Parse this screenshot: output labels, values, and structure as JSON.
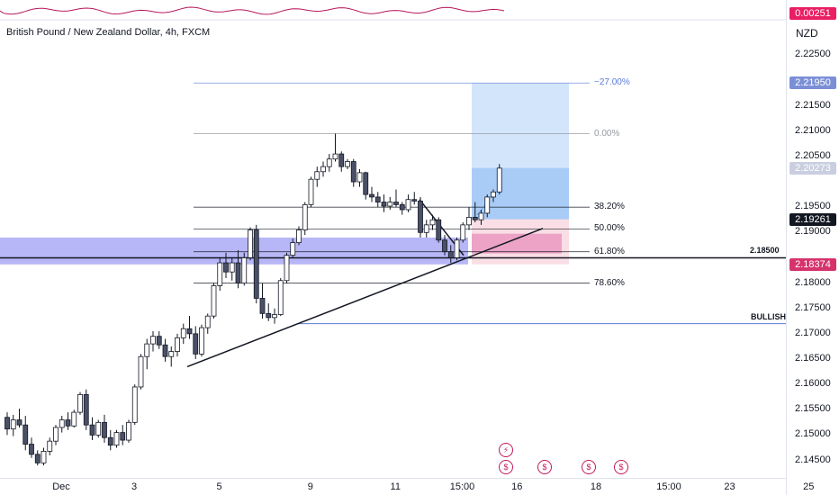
{
  "symbol": {
    "title": "British Pound / New Zealand Dollar, 4h, FXCM"
  },
  "currency_label": "NZD",
  "indicator": {
    "value": "0.00251"
  },
  "price_scale": {
    "ticks": [
      {
        "label": "2.22500",
        "value": 2.225
      },
      {
        "label": "2.21500",
        "value": 2.215
      },
      {
        "label": "2.21000",
        "value": 2.21
      },
      {
        "label": "2.20500",
        "value": 2.205
      },
      {
        "label": "2.19500",
        "value": 2.195
      },
      {
        "label": "2.19000",
        "value": 2.19
      },
      {
        "label": "2.18000",
        "value": 2.18
      },
      {
        "label": "2.17500",
        "value": 2.175
      },
      {
        "label": "2.17000",
        "value": 2.17
      },
      {
        "label": "2.16500",
        "value": 2.165
      },
      {
        "label": "2.16000",
        "value": 2.16
      },
      {
        "label": "2.15500",
        "value": 2.155
      },
      {
        "label": "2.15000",
        "value": 2.15
      },
      {
        "label": "2.14500",
        "value": 2.145
      }
    ],
    "badges": [
      {
        "label": "2.21950",
        "value": 2.2195,
        "color": "#7b8fd6"
      },
      {
        "label": "2.20273",
        "value": 2.20273,
        "color": "#c9cfe0"
      },
      {
        "label": "2.19261",
        "value": 2.19261,
        "color": "#131722"
      },
      {
        "label": "2.18374",
        "value": 2.18374,
        "color": "#d6336c"
      }
    ]
  },
  "time_axis": {
    "ticks": [
      {
        "label": "Dec",
        "bar": 0
      },
      {
        "label": "3",
        "bar": 12
      },
      {
        "label": "5",
        "bar": 26
      },
      {
        "label": "9",
        "bar": 41
      },
      {
        "label": "11",
        "bar": 55
      },
      {
        "label": "15:00",
        "bar": 66
      },
      {
        "label": "16",
        "bar": 75
      },
      {
        "label": "18",
        "bar": 88
      },
      {
        "label": "15:00",
        "bar": 100
      },
      {
        "label": "23",
        "bar": 110
      },
      {
        "label": "25",
        "bar": 123
      }
    ]
  },
  "fibonacci": {
    "levels": [
      {
        "label": "−27.00%",
        "value": 2.2195,
        "color": "#5b7bd6"
      },
      {
        "label": "0.00%",
        "value": 2.2095,
        "color": "#9598a1"
      },
      {
        "label": "38.20%",
        "value": 2.195,
        "color": "#131722"
      },
      {
        "label": "50.00%",
        "value": 2.1907,
        "color": "#131722"
      },
      {
        "label": "61.80%",
        "value": 2.1862,
        "color": "#131722"
      },
      {
        "label": "78.60%",
        "value": 2.18,
        "color": "#131722"
      }
    ]
  },
  "horizontal_lines": [
    {
      "label": "2.18500",
      "value": 2.185
    },
    {
      "label": "BULLISH",
      "value": 2.172
    }
  ],
  "chart_data": {
    "type": "candlestick",
    "title": "British Pound / New Zealand Dollar, 4h, FXCM",
    "ylim": [
      2.1435,
      2.2295
    ],
    "candles": [
      [
        2.1535,
        2.1545,
        2.15,
        2.1512
      ],
      [
        2.1512,
        2.154,
        2.1498,
        2.153
      ],
      [
        2.153,
        2.1552,
        2.1515,
        2.152
      ],
      [
        2.152,
        2.1538,
        2.147,
        2.1482
      ],
      [
        2.1482,
        2.1495,
        2.1455,
        2.1462
      ],
      [
        2.1462,
        2.147,
        2.144,
        2.1445
      ],
      [
        2.1445,
        2.1475,
        2.144,
        2.1468
      ],
      [
        2.1468,
        2.1495,
        2.146,
        2.1488
      ],
      [
        2.1488,
        2.152,
        2.148,
        2.1515
      ],
      [
        2.1515,
        2.1538,
        2.1505,
        2.153
      ],
      [
        2.153,
        2.1545,
        2.151,
        2.1518
      ],
      [
        2.1518,
        2.155,
        2.1515,
        2.1545
      ],
      [
        2.1545,
        2.1585,
        2.154,
        2.158
      ],
      [
        2.158,
        2.159,
        2.151,
        2.152
      ],
      [
        2.152,
        2.1535,
        2.149,
        2.15
      ],
      [
        2.15,
        2.153,
        2.1495,
        2.1525
      ],
      [
        2.1525,
        2.154,
        2.1485,
        2.1495
      ],
      [
        2.1495,
        2.151,
        2.147,
        2.148
      ],
      [
        2.148,
        2.151,
        2.1475,
        2.1505
      ],
      [
        2.1505,
        2.152,
        2.148,
        2.149
      ],
      [
        2.149,
        2.153,
        2.1485,
        2.1525
      ],
      [
        2.1525,
        2.16,
        2.152,
        2.1595
      ],
      [
        2.1595,
        2.166,
        2.159,
        2.1655
      ],
      [
        2.1655,
        2.169,
        2.163,
        2.168
      ],
      [
        2.168,
        2.1705,
        2.1665,
        2.1695
      ],
      [
        2.1695,
        2.1705,
        2.167,
        2.1678
      ],
      [
        2.1678,
        2.169,
        2.1645,
        2.1655
      ],
      [
        2.1655,
        2.1675,
        2.1635,
        2.1665
      ],
      [
        2.1665,
        2.17,
        2.1655,
        2.1692
      ],
      [
        2.1692,
        2.172,
        2.168,
        2.171
      ],
      [
        2.171,
        2.1735,
        2.169,
        2.17
      ],
      [
        2.17,
        2.1715,
        2.165,
        2.166
      ],
      [
        2.166,
        2.1718,
        2.1655,
        2.1712
      ],
      [
        2.1712,
        2.174,
        2.17,
        2.1735
      ],
      [
        2.1735,
        2.18,
        2.173,
        2.1795
      ],
      [
        2.1795,
        2.185,
        2.1785,
        2.184
      ],
      [
        2.184,
        2.186,
        2.181,
        2.1822
      ],
      [
        2.1822,
        2.185,
        2.1805,
        2.184
      ],
      [
        2.184,
        2.1865,
        2.179,
        2.18
      ],
      [
        2.18,
        2.186,
        2.1795,
        2.185
      ],
      [
        2.185,
        2.191,
        2.1845,
        2.1905
      ],
      [
        2.1905,
        2.1915,
        2.176,
        2.177
      ],
      [
        2.177,
        2.18,
        2.173,
        2.174
      ],
      [
        2.174,
        2.176,
        2.1725,
        2.1732
      ],
      [
        2.1732,
        2.175,
        2.172,
        2.1738
      ],
      [
        2.1738,
        2.181,
        2.1735,
        2.1805
      ],
      [
        2.1805,
        2.186,
        2.18,
        2.1855
      ],
      [
        2.1855,
        2.1888,
        2.185,
        2.188
      ],
      [
        2.188,
        2.1912,
        2.1875,
        2.1905
      ],
      [
        2.1905,
        2.196,
        2.1895,
        2.1955
      ],
      [
        2.1955,
        2.201,
        2.195,
        2.2005
      ],
      [
        2.2005,
        2.203,
        2.199,
        2.202
      ],
      [
        2.202,
        2.204,
        2.201,
        2.203
      ],
      [
        2.203,
        2.2055,
        2.202,
        2.2045
      ],
      [
        2.2045,
        2.2095,
        2.204,
        2.2055
      ],
      [
        2.2055,
        2.206,
        2.202,
        2.203
      ],
      [
        2.203,
        2.2045,
        2.2025,
        2.204
      ],
      [
        2.204,
        2.2045,
        2.199,
        2.2
      ],
      [
        2.2,
        2.2025,
        2.199,
        2.2018
      ],
      [
        2.2018,
        2.202,
        2.1965,
        2.1975
      ],
      [
        2.1975,
        2.199,
        2.196,
        2.197
      ],
      [
        2.197,
        2.198,
        2.195,
        2.196
      ],
      [
        2.196,
        2.1975,
        2.194,
        2.1952
      ],
      [
        2.1952,
        2.197,
        2.1945,
        2.196
      ],
      [
        2.196,
        2.1985,
        2.195,
        2.1955
      ],
      [
        2.1955,
        2.196,
        2.1935,
        2.1945
      ],
      [
        2.1945,
        2.1975,
        2.194,
        2.1965
      ],
      [
        2.1965,
        2.198,
        2.1955,
        2.1962
      ],
      [
        2.1962,
        2.197,
        2.189,
        2.19
      ],
      [
        2.19,
        2.1925,
        2.189,
        2.1915
      ],
      [
        2.1915,
        2.1935,
        2.1905,
        2.1925
      ],
      [
        2.1925,
        2.193,
        2.188,
        2.1885
      ],
      [
        2.1885,
        2.1895,
        2.1855,
        2.1862
      ],
      [
        2.1862,
        2.1875,
        2.184,
        2.185
      ],
      [
        2.185,
        2.189,
        2.1845,
        2.1885
      ],
      [
        2.1885,
        2.192,
        2.188,
        2.1915
      ],
      [
        2.1915,
        2.195,
        2.1905,
        2.193
      ],
      [
        2.193,
        2.196,
        2.192,
        2.1925
      ],
      [
        2.1925,
        2.1945,
        2.1915,
        2.1938
      ],
      [
        2.1938,
        2.1975,
        2.193,
        2.197
      ],
      [
        2.197,
        2.1985,
        2.196,
        2.198
      ],
      [
        2.198,
        2.2035,
        2.1975,
        2.2027
      ]
    ],
    "fib_levels": [
      {
        "label": "−27.00%",
        "value": 2.2195
      },
      {
        "label": "0.00%",
        "value": 2.2095
      },
      {
        "label": "38.20%",
        "value": 2.195
      },
      {
        "label": "50.00%",
        "value": 2.1907
      },
      {
        "label": "61.80%",
        "value": 2.1862
      },
      {
        "label": "78.60%",
        "value": 2.18
      }
    ],
    "annotations": [
      "2.18500",
      "BULLISH"
    ],
    "long_position": {
      "target": 2.2195,
      "entry": 2.1926,
      "stop": 2.1837,
      "current": 2.20273
    },
    "demand_zone": [
      2.1837,
      2.189
    ],
    "grid": false
  }
}
